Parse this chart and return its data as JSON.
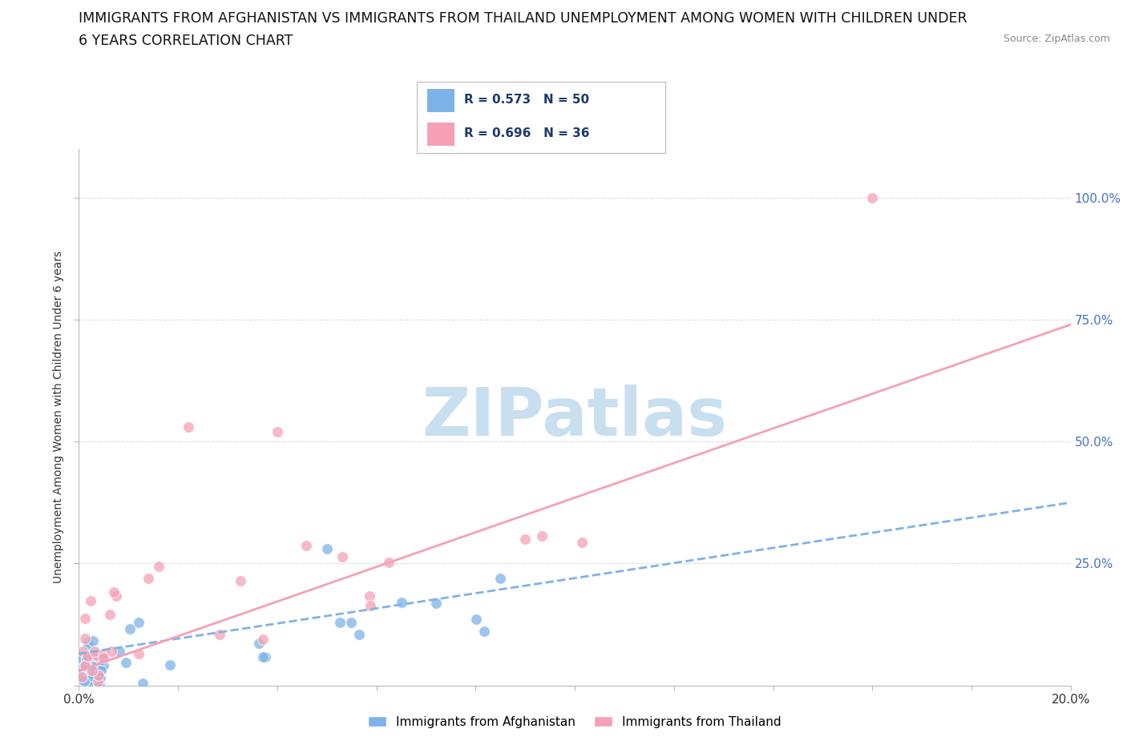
{
  "title_line1": "IMMIGRANTS FROM AFGHANISTAN VS IMMIGRANTS FROM THAILAND UNEMPLOYMENT AMONG WOMEN WITH CHILDREN UNDER",
  "title_line2": "6 YEARS CORRELATION CHART",
  "source": "Source: ZipAtlas.com",
  "ylabel": "Unemployment Among Women with Children Under 6 years",
  "xlim": [
    0.0,
    0.2
  ],
  "ylim": [
    0.0,
    1.1
  ],
  "ytick_values": [
    0.0,
    0.25,
    0.5,
    0.75,
    1.0
  ],
  "ytick_labels_right": [
    "",
    "25.0%",
    "50.0%",
    "75.0%",
    "100.0%"
  ],
  "xtick_values": [
    0.0,
    0.02,
    0.04,
    0.06,
    0.08,
    0.1,
    0.12,
    0.14,
    0.16,
    0.18,
    0.2
  ],
  "afghanistan_color": "#7EB3E8",
  "thailand_color": "#F5A0B5",
  "afghanistan_R": 0.573,
  "afghanistan_N": 50,
  "thailand_R": 0.696,
  "thailand_N": 36,
  "legend_afghanistan_label": "Immigrants from Afghanistan",
  "legend_thailand_label": "Immigrants from Thailand",
  "watermark_text": "ZIPatlas",
  "watermark_color": "#C8DFF0",
  "background_color": "#FFFFFF",
  "grid_color": "#DDDDDD",
  "title_fontsize": 12.5,
  "source_fontsize": 9,
  "axis_label_fontsize": 10,
  "tick_fontsize": 11,
  "legend_fontsize": 11,
  "afg_trend_intercept": 0.065,
  "afg_trend_slope": 1.55,
  "thai_trend_intercept": 0.03,
  "thai_trend_slope": 3.55
}
